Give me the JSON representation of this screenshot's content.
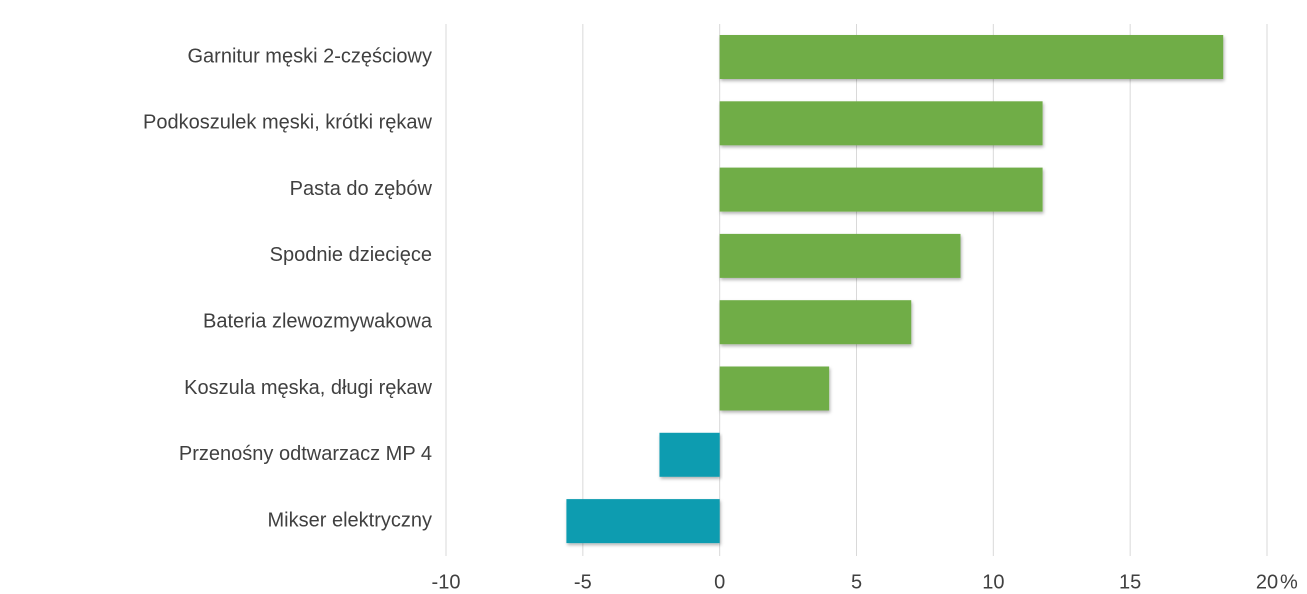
{
  "chart_data": {
    "type": "bar",
    "orientation": "horizontal",
    "categories": [
      "Garnitur męski 2-częściowy",
      "Podkoszulek męski, krótki rękaw",
      "Pasta do zębów",
      "Spodnie dziecięce",
      "Bateria zlewozmywakowa",
      "Koszula męska, długi rękaw",
      "Przenośny odtwarzacz MP 4",
      "Mikser elektryczny"
    ],
    "values": [
      18.4,
      11.8,
      11.8,
      8.8,
      7.0,
      4.0,
      -2.2,
      -5.6
    ],
    "colors": [
      "#70ad47",
      "#70ad47",
      "#70ad47",
      "#70ad47",
      "#70ad47",
      "#70ad47",
      "#0e9cb0",
      "#0e9cb0"
    ],
    "xlabel": "%",
    "xlim": [
      -10,
      20
    ],
    "xticks": [
      -10,
      -5,
      0,
      5,
      10,
      15,
      20
    ],
    "grid": true
  }
}
